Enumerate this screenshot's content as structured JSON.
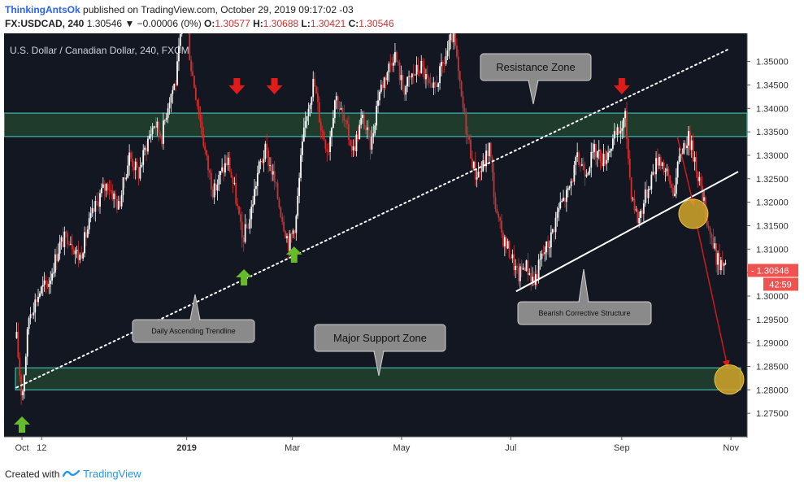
{
  "header": {
    "author": "ThinkingAntsOk",
    "published": "published on TradingView.com, October 29, 2019 09:17:02 -03",
    "symbol": "FX:USDCAD, 240",
    "last": "1.30546",
    "change": "▼ −0.00006 (0%)",
    "o_label": "O:",
    "o_val": "1.30577",
    "h_label": "H:",
    "h_val": "1.30688",
    "l_label": "L:",
    "l_val": "1.30421",
    "c_label": "C:",
    "c_val": "1.30546"
  },
  "footer": {
    "created": "Created with",
    "brand": "TradingView"
  },
  "colors": {
    "background": "#131722",
    "zone_fill": "#1e3b2c",
    "zone_border": "#4dd0c8",
    "candle_up": "#ffffff",
    "candle_down": "#d32f2f",
    "arrow_up": "#66bb2a",
    "arrow_down": "#e01b1b",
    "callout": "#8a8a8a",
    "circle": "#d4a62a",
    "price_badge": "#ef5350"
  },
  "chart_data": {
    "type": "candlestick",
    "title": "U.S. Dollar / Canadian Dollar, 240, FXCM",
    "y_range": [
      1.27,
      1.356
    ],
    "y_ticks": [
      "1.35000",
      "1.34500",
      "1.34000",
      "1.33500",
      "1.33000",
      "1.32500",
      "1.32000",
      "1.31500",
      "1.31000",
      "1.30500",
      "1.30000",
      "1.29500",
      "1.29000",
      "1.28500",
      "1.28000",
      "1.27500"
    ],
    "x_labels": [
      "Oct",
      "12",
      "2019",
      "Mar",
      "May",
      "Jul",
      "Sep",
      "Nov"
    ],
    "last_price": "1.30546",
    "countdown": "42:59",
    "zones": [
      {
        "name": "Resistance Zone",
        "low": 1.334,
        "high": 1.339
      },
      {
        "name": "Major Support Zone",
        "low": 1.28,
        "high": 1.2847
      }
    ],
    "annotations": {
      "resistance": "Resistance Zone",
      "support": "Major Support Zone",
      "trendline": "Daily Ascending Trendline",
      "structure": "Bearish Corrective Structure"
    },
    "trendline": {
      "style": "dotted",
      "from": [
        "2018-09-28",
        1.2805
      ],
      "to": [
        "2019-10-30",
        1.3525
      ]
    },
    "structure_line": {
      "from": [
        "2019-07-04",
        1.301
      ],
      "to": [
        "2019-11-05",
        1.3265
      ]
    },
    "path": [
      [
        "2018-09-28",
        1.291
      ],
      [
        "2018-10-01",
        1.278
      ],
      [
        "2018-10-05",
        1.296
      ],
      [
        "2018-10-11",
        1.301
      ],
      [
        "2018-10-16",
        1.303
      ],
      [
        "2018-10-22",
        1.311
      ],
      [
        "2018-10-27",
        1.313
      ],
      [
        "2018-11-02",
        1.308
      ],
      [
        "2018-11-08",
        1.316
      ],
      [
        "2018-11-14",
        1.322
      ],
      [
        "2018-11-18",
        1.324
      ],
      [
        "2018-11-24",
        1.319
      ],
      [
        "2018-11-30",
        1.33
      ],
      [
        "2018-12-05",
        1.326
      ],
      [
        "2018-12-10",
        1.333
      ],
      [
        "2018-12-14",
        1.337
      ],
      [
        "2018-12-18",
        1.334
      ],
      [
        "2018-12-22",
        1.342
      ],
      [
        "2018-12-26",
        1.346
      ],
      [
        "2018-12-31",
        1.364
      ],
      [
        "2019-01-03",
        1.35
      ],
      [
        "2019-01-08",
        1.339
      ],
      [
        "2019-01-12",
        1.329
      ],
      [
        "2019-01-16",
        1.322
      ],
      [
        "2019-01-20",
        1.326
      ],
      [
        "2019-01-24",
        1.329
      ],
      [
        "2019-01-28",
        1.322
      ],
      [
        "2019-02-01",
        1.312
      ],
      [
        "2019-02-05",
        1.316
      ],
      [
        "2019-02-10",
        1.327
      ],
      [
        "2019-02-14",
        1.331
      ],
      [
        "2019-02-18",
        1.326
      ],
      [
        "2019-02-22",
        1.319
      ],
      [
        "2019-02-27",
        1.311
      ],
      [
        "2019-03-03",
        1.316
      ],
      [
        "2019-03-06",
        1.33
      ],
      [
        "2019-03-09",
        1.339
      ],
      [
        "2019-03-13",
        1.346
      ],
      [
        "2019-03-17",
        1.336
      ],
      [
        "2019-03-21",
        1.331
      ],
      [
        "2019-03-25",
        1.343
      ],
      [
        "2019-03-30",
        1.337
      ],
      [
        "2019-04-04",
        1.331
      ],
      [
        "2019-04-09",
        1.338
      ],
      [
        "2019-04-14",
        1.332
      ],
      [
        "2019-04-18",
        1.343
      ],
      [
        "2019-04-22",
        1.347
      ],
      [
        "2019-04-27",
        1.352
      ],
      [
        "2019-05-02",
        1.344
      ],
      [
        "2019-05-07",
        1.347
      ],
      [
        "2019-05-12",
        1.349
      ],
      [
        "2019-05-18",
        1.343
      ],
      [
        "2019-05-24",
        1.349
      ],
      [
        "2019-05-30",
        1.356
      ],
      [
        "2019-06-03",
        1.343
      ],
      [
        "2019-06-07",
        1.334
      ],
      [
        "2019-06-11",
        1.326
      ],
      [
        "2019-06-15",
        1.327
      ],
      [
        "2019-06-19",
        1.332
      ],
      [
        "2019-06-23",
        1.317
      ],
      [
        "2019-06-27",
        1.312
      ],
      [
        "2019-07-01",
        1.309
      ],
      [
        "2019-07-05",
        1.304
      ],
      [
        "2019-07-09",
        1.307
      ],
      [
        "2019-07-14",
        1.303
      ],
      [
        "2019-07-18",
        1.308
      ],
      [
        "2019-07-23",
        1.312
      ],
      [
        "2019-07-28",
        1.319
      ],
      [
        "2019-08-02",
        1.322
      ],
      [
        "2019-08-07",
        1.329
      ],
      [
        "2019-08-12",
        1.327
      ],
      [
        "2019-08-17",
        1.331
      ],
      [
        "2019-08-22",
        1.329
      ],
      [
        "2019-08-27",
        1.333
      ],
      [
        "2019-09-01",
        1.336
      ],
      [
        "2019-09-03",
        1.338
      ],
      [
        "2019-09-06",
        1.323
      ],
      [
        "2019-09-10",
        1.316
      ],
      [
        "2019-09-14",
        1.321
      ],
      [
        "2019-09-18",
        1.326
      ],
      [
        "2019-09-22",
        1.33
      ],
      [
        "2019-09-26",
        1.326
      ],
      [
        "2019-09-30",
        1.322
      ],
      [
        "2019-10-04",
        1.331
      ],
      [
        "2019-10-08",
        1.334
      ],
      [
        "2019-10-12",
        1.329
      ],
      [
        "2019-10-16",
        1.321
      ],
      [
        "2019-10-20",
        1.314
      ],
      [
        "2019-10-24",
        1.308
      ],
      [
        "2019-10-29",
        1.3055
      ]
    ],
    "resistance_arrows_down": [
      "2019-01-29",
      "2019-02-19",
      "2019-09-01"
    ],
    "support_arrows_up": [
      "2018-10-01",
      "2019-02-02",
      "2019-03-02"
    ],
    "breakdown_circles": [
      [
        "2019-10-11",
        1.3175
      ],
      [
        "2019-10-31",
        1.2822
      ]
    ],
    "projection_arrows": [
      {
        "from": [
          "2019-10-02",
          1.334
        ],
        "to": [
          "2019-10-11",
          1.3195
        ]
      },
      {
        "from": [
          "2019-10-13",
          1.315
        ],
        "to": [
          "2019-10-30",
          1.285
        ]
      }
    ]
  }
}
